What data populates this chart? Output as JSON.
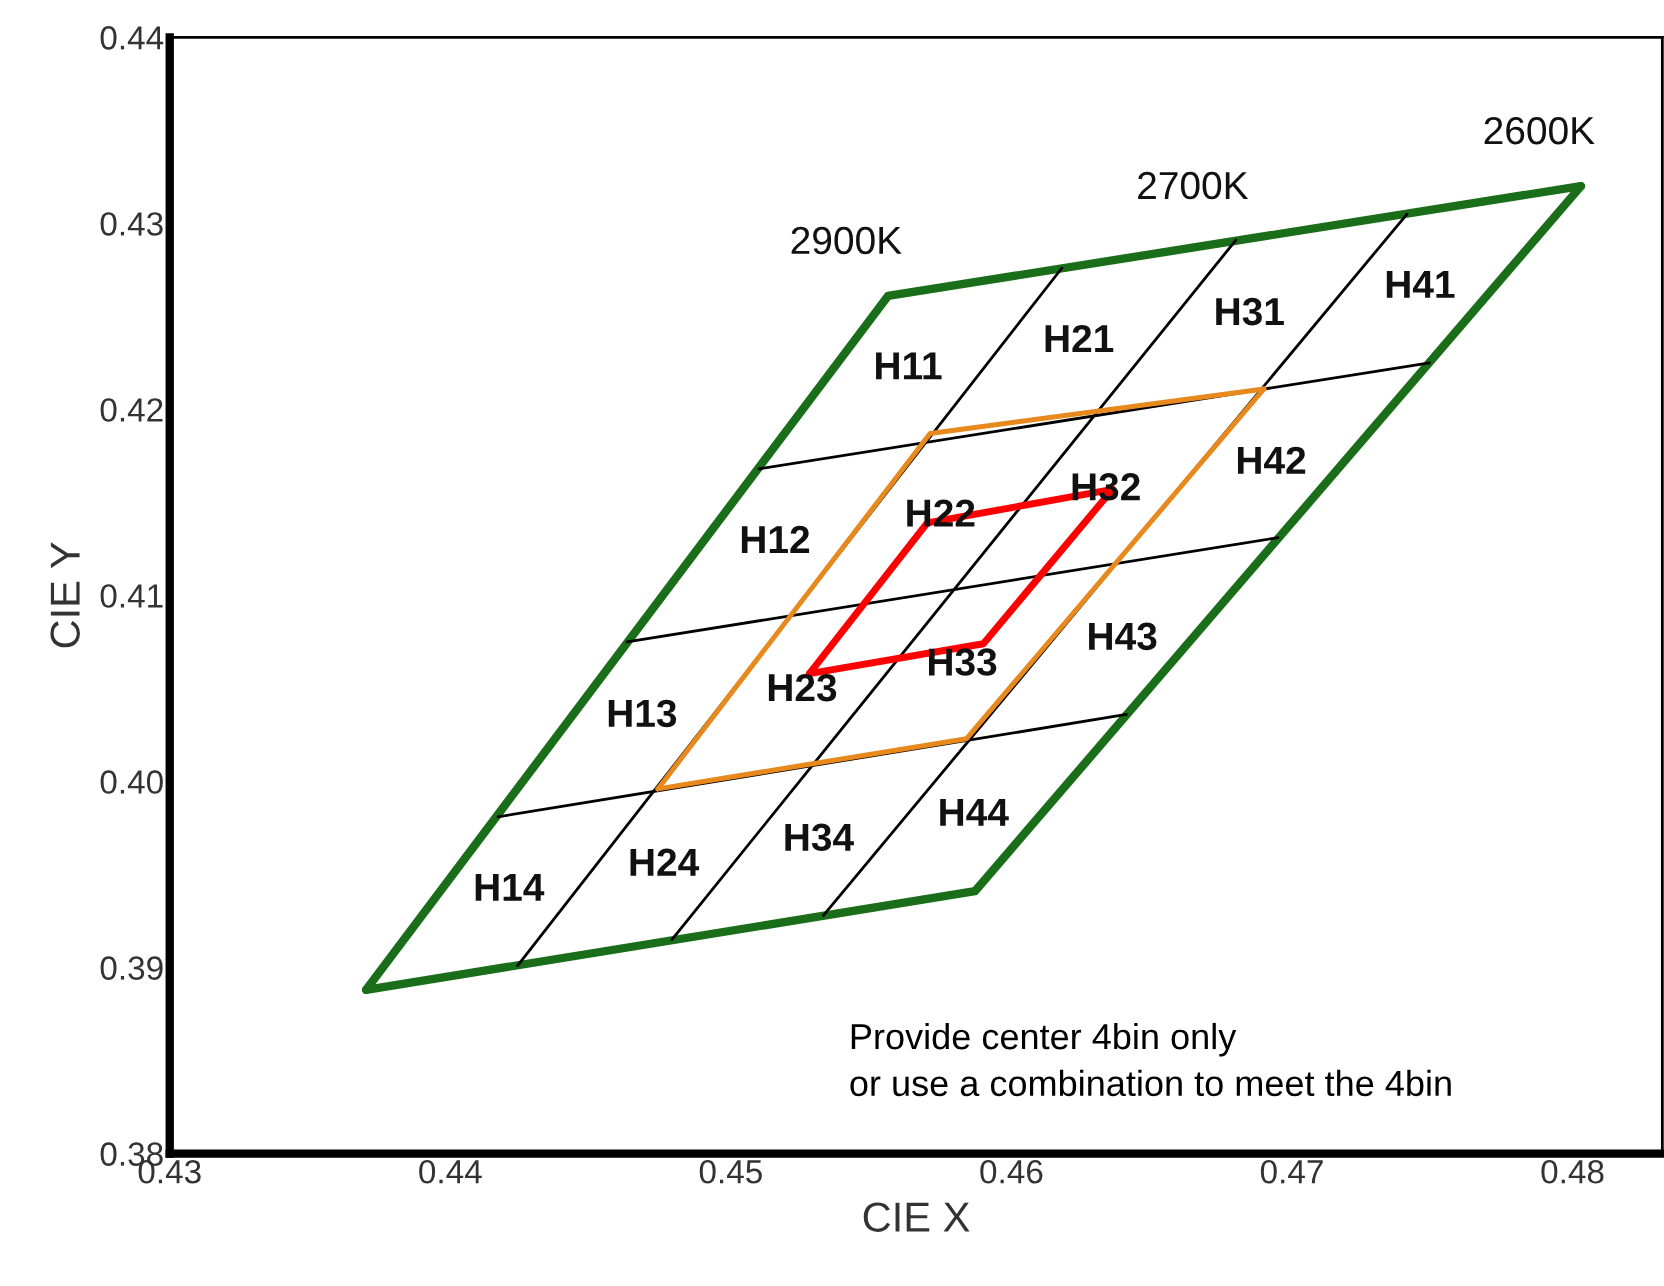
{
  "chart_data": {
    "type": "line",
    "xlabel": "CIE X",
    "ylabel": "CIE Y",
    "xlim": [
      0.43,
      0.4832
    ],
    "ylim": [
      0.38,
      0.44
    ],
    "xticks": [
      0.43,
      0.44,
      0.45,
      0.46,
      0.47,
      0.48
    ],
    "yticks": [
      0.38,
      0.39,
      {
        "value": 0.4,
        "label": "0.40"
      },
      0.41,
      0.42,
      0.43,
      0.44
    ],
    "grid": false,
    "legend": false,
    "marker": "none",
    "line_style": "solid",
    "series": [
      {
        "color": "#1a6e1a",
        "x": [
          0.437,
          0.4556,
          0.4803
        ],
        "values": [
          0.3888,
          0.4261,
          0.432
        ]
      },
      {
        "color": "#1a6e1a",
        "x": [
          0.437,
          0.4587,
          0.4803
        ],
        "values": [
          0.3888,
          0.3941,
          0.432
        ]
      },
      {
        "color": "#000000",
        "x": [
          0.4417,
          0.4641
        ],
        "values": [
          0.3981,
          0.4036
        ]
      },
      {
        "color": "#000000",
        "x": [
          0.4463,
          0.4695
        ],
        "values": [
          0.4075,
          0.4131
        ]
      },
      {
        "color": "#000000",
        "x": [
          0.451,
          0.4749
        ],
        "values": [
          0.4168,
          0.4225
        ]
      },
      {
        "color": "#000000",
        "x": [
          0.4424,
          0.4618
        ],
        "values": [
          0.3901,
          0.4276
        ]
      },
      {
        "color": "#000000",
        "x": [
          0.4479,
          0.468
        ],
        "values": [
          0.3915,
          0.4291
        ]
      },
      {
        "color": "#000000",
        "x": [
          0.4533,
          0.4741
        ],
        "values": [
          0.3928,
          0.4305
        ]
      },
      {
        "color": "#e8891e",
        "x": [
          0.4474,
          0.4571,
          0.469
        ],
        "values": [
          0.3996,
          0.4187,
          0.4211
        ]
      },
      {
        "color": "#e8891e",
        "x": [
          0.4474,
          0.4584,
          0.469
        ],
        "values": [
          0.3996,
          0.4023,
          0.4211
        ]
      },
      {
        "color": "#ff0000",
        "x": [
          0.4528,
          0.457,
          0.4636
        ],
        "values": [
          0.4058,
          0.4139,
          0.4157
        ]
      },
      {
        "color": "#ff0000",
        "x": [
          0.4528,
          0.459,
          0.4636
        ],
        "values": [
          0.4058,
          0.4074,
          0.4157
        ]
      }
    ],
    "annotations": [
      "2900K",
      "2700K",
      "2600K",
      "H11",
      "H21",
      "H31",
      "H41",
      "H12",
      "H22",
      "H32",
      "H42",
      "H13",
      "H23",
      "H33",
      "H43",
      "H14",
      "H24",
      "H34",
      "H44",
      "Provide center 4bin only\nor use a combination to meet the 4bin"
    ]
  }
}
